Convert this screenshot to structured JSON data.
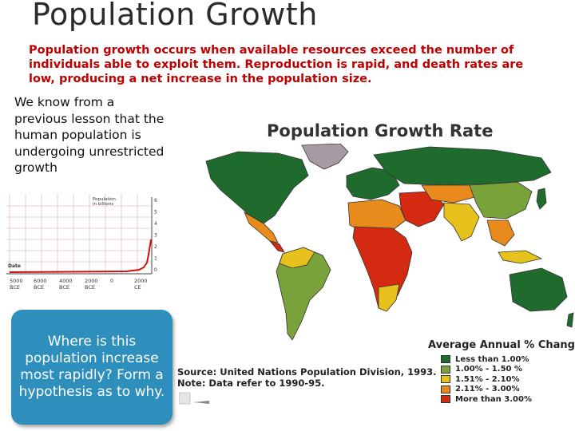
{
  "title": "Population Growth",
  "intro": "Population growth occurs when available resources exceed the number of individuals able to exploit them. Reproduction is rapid, and death rates are low, producing a net increase in the population size.",
  "left_text": "We know from a previous lesson that the human population is undergoing unrestricted growth",
  "mini_chart": {
    "y_label_line1": "Population",
    "y_label_line2": "in billions",
    "x_label": "Date",
    "y_ticks": [
      "6",
      "5",
      "4",
      "3",
      "2",
      "1",
      "0"
    ],
    "x_ticks": [
      {
        "top": "5000",
        "bottom": "BCE"
      },
      {
        "top": "6000",
        "bottom": "BCE"
      },
      {
        "top": "4000",
        "bottom": "BCE"
      },
      {
        "top": "2000",
        "bottom": "BCE"
      },
      {
        "top": "0",
        "bottom": ""
      },
      {
        "top": "2000",
        "bottom": "CE"
      }
    ]
  },
  "question": "Where is this population increase most rapidly? Form a hypothesis as to why.",
  "map_title": "Population Growth Rate",
  "legend_title": "Average Annual % Change",
  "legend": [
    {
      "label": "Less than 1.00%",
      "color": "#1f6b2e"
    },
    {
      "label": "1.00% - 1.50 %",
      "color": "#7aa23a"
    },
    {
      "label": "1.51% - 2.10%",
      "color": "#e8c21c"
    },
    {
      "label": "2.11% - 3.00%",
      "color": "#e88a1c"
    },
    {
      "label": "More than 3.00%",
      "color": "#d42a12"
    }
  ],
  "source_line1": "Source: United Nations Population Division, 1993.",
  "source_line2": "Note: Data refer to 1990-95."
}
